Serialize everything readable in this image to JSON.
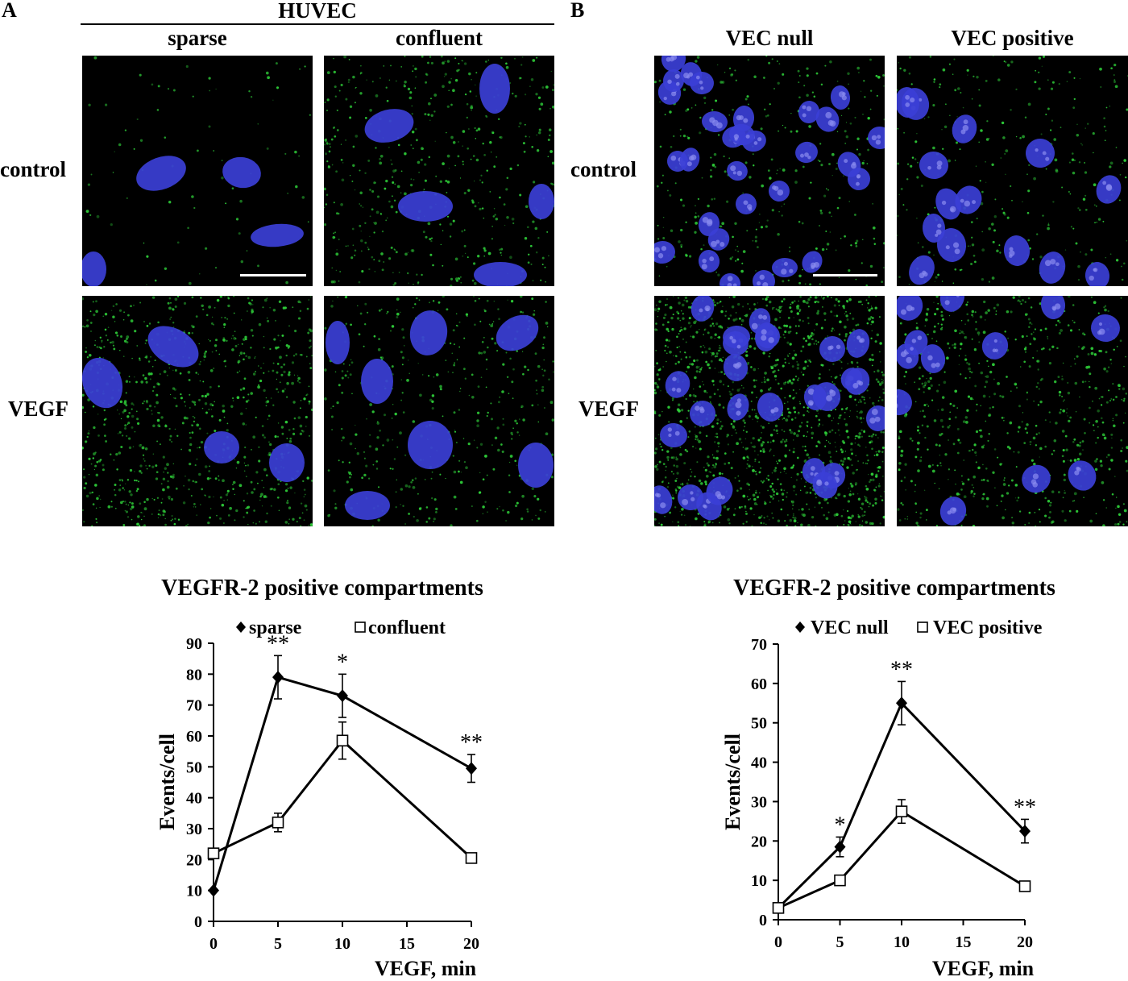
{
  "panel_a": {
    "letter": "A",
    "group_title": "HUVEC",
    "columns": [
      "sparse",
      "confluent"
    ],
    "rows": [
      "control",
      "VEGF"
    ]
  },
  "panel_b": {
    "letter": "B",
    "columns": [
      "VEC null",
      "VEC positive"
    ],
    "rows": [
      "control",
      "VEGF"
    ]
  },
  "colors": {
    "nucleus": "#3b3fd6",
    "puncta": "#2fd23a",
    "background": "#000000"
  },
  "chart_data": [
    {
      "type": "line",
      "title": "VEGFR-2 positive compartments",
      "xlabel": "VEGF, min",
      "ylabel": "Events/cell",
      "xlim": [
        0,
        20
      ],
      "ylim": [
        0,
        90
      ],
      "xticks": [
        0,
        5,
        10,
        15,
        20
      ],
      "yticks": [
        0,
        10,
        20,
        30,
        40,
        50,
        60,
        70,
        80,
        90
      ],
      "legend_position": "top",
      "series": [
        {
          "name": "sparse",
          "marker": "filled-diamond",
          "x": [
            0,
            5,
            10,
            20
          ],
          "y": [
            10,
            79,
            73,
            49.5
          ],
          "err": [
            0,
            7,
            7,
            4.5
          ],
          "annotations": [
            "",
            "**",
            "*",
            "**"
          ]
        },
        {
          "name": "confluent",
          "marker": "open-square",
          "x": [
            0,
            5,
            10,
            20
          ],
          "y": [
            22,
            32,
            58.5,
            20.5
          ],
          "err": [
            0,
            3,
            6,
            1.5
          ],
          "annotations": [
            "",
            "",
            "",
            ""
          ]
        }
      ]
    },
    {
      "type": "line",
      "title": "VEGFR-2 positive compartments",
      "xlabel": "VEGF, min",
      "ylabel": "Events/cell",
      "xlim": [
        0,
        20
      ],
      "ylim": [
        0,
        70
      ],
      "xticks": [
        0,
        5,
        10,
        15,
        20
      ],
      "yticks": [
        0,
        10,
        20,
        30,
        40,
        50,
        60,
        70
      ],
      "legend_position": "top",
      "series": [
        {
          "name": "VEC null",
          "marker": "filled-diamond",
          "x": [
            0,
            5,
            10,
            20
          ],
          "y": [
            3,
            18.5,
            55,
            22.5
          ],
          "err": [
            0,
            2.5,
            5.5,
            3
          ],
          "annotations": [
            "",
            "*",
            "**",
            "**"
          ]
        },
        {
          "name": "VEC positive",
          "marker": "open-square",
          "x": [
            0,
            5,
            10,
            20
          ],
          "y": [
            3,
            10,
            27.5,
            8.5
          ],
          "err": [
            0,
            0.8,
            3,
            0.8
          ],
          "annotations": [
            "",
            "",
            "",
            ""
          ]
        }
      ]
    }
  ]
}
